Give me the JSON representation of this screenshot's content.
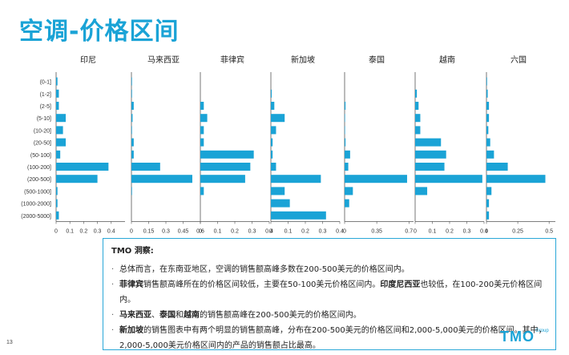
{
  "page": {
    "title": "空调-价格区间",
    "page_number": "13"
  },
  "colors": {
    "bar": "#1aa3d6",
    "title": "#1aa3d6",
    "axis": "#555555"
  },
  "chart_data": {
    "type": "bar",
    "orientation": "horizontal",
    "categories": [
      "(0-1]",
      "(1-2]",
      "(2-5]",
      "(5-10]",
      "(10-20]",
      "(20-50]",
      "(50-100]",
      "(100-200]",
      "(200-500]",
      "(500-1000]",
      "(1000-2000]",
      "(2000-5000]"
    ],
    "panels": [
      {
        "title": "印尼",
        "xlim": [
          0,
          0.5
        ],
        "ticks": [
          "0",
          "0.1",
          "0.2",
          "0.3",
          "0.4"
        ],
        "tick_values": [
          0,
          0.1,
          0.2,
          0.3,
          0.4
        ],
        "values": [
          0.01,
          0.02,
          0.02,
          0.07,
          0.05,
          0.07,
          0.03,
          0.38,
          0.3,
          0.01,
          0.01,
          0.02
        ]
      },
      {
        "title": "马来西亚",
        "xlim": [
          0,
          0.6
        ],
        "ticks": [
          "0",
          "0.15",
          "0.3",
          "0.45",
          "0.6"
        ],
        "tick_values": [
          0,
          0.15,
          0.3,
          0.45,
          0.6
        ],
        "values": [
          0.005,
          0.005,
          0.02,
          0.01,
          0.005,
          0.02,
          0.02,
          0.25,
          0.53,
          0.005,
          0.0,
          0.0
        ]
      },
      {
        "title": "菲律宾",
        "xlim": [
          0,
          0.4
        ],
        "ticks": [
          "0",
          "0.1",
          "0.2",
          "0.3",
          "0.4"
        ],
        "tick_values": [
          0,
          0.1,
          0.2,
          0.3,
          0.4
        ],
        "values": [
          0.0,
          0.0,
          0.02,
          0.04,
          0.02,
          0.02,
          0.31,
          0.29,
          0.26,
          0.02,
          0.0,
          0.0
        ]
      },
      {
        "title": "新加坡",
        "xlim": [
          0,
          0.4
        ],
        "ticks": [
          "0",
          "0.1",
          "0.2",
          "0.3",
          "0.4"
        ],
        "tick_values": [
          0,
          0.1,
          0.2,
          0.3,
          0.4
        ],
        "values": [
          0.0,
          0.005,
          0.02,
          0.08,
          0.03,
          0.01,
          0.01,
          0.03,
          0.29,
          0.08,
          0.11,
          0.32
        ]
      },
      {
        "title": "泰国",
        "xlim": [
          0,
          0.75
        ],
        "ticks": [
          "0",
          "0.35",
          "0.7"
        ],
        "tick_values": [
          0,
          0.35,
          0.7
        ],
        "values": [
          0.0,
          0.0,
          0.01,
          0.005,
          0.005,
          0.01,
          0.06,
          0.04,
          0.68,
          0.09,
          0.05,
          0.0
        ]
      },
      {
        "title": "越南",
        "xlim": [
          0,
          0.4
        ],
        "ticks": [
          "0",
          "0.1",
          "0.2",
          "0.3",
          "0.4"
        ],
        "tick_values": [
          0,
          0.1,
          0.2,
          0.3,
          0.4
        ],
        "values": [
          0.0,
          0.01,
          0.02,
          0.03,
          0.03,
          0.15,
          0.18,
          0.17,
          0.39,
          0.07,
          0.0,
          0.0
        ]
      },
      {
        "title": "六国",
        "xlim": [
          0,
          0.55
        ],
        "ticks": [
          "0",
          "0.25",
          "0.5"
        ],
        "tick_values": [
          0,
          0.25,
          0.5
        ],
        "values": [
          0.005,
          0.01,
          0.02,
          0.02,
          0.015,
          0.03,
          0.06,
          0.17,
          0.47,
          0.04,
          0.02,
          0.02
        ]
      }
    ]
  },
  "insight": {
    "heading": "TMO 洞察:",
    "bullets": [
      {
        "parts": [
          {
            "text": "总体而言，在东南亚地区，空调的销售额高峰多数在200-500美元的价格区间内。",
            "bold": false
          }
        ]
      },
      {
        "parts": [
          {
            "text": "菲律宾",
            "bold": true
          },
          {
            "text": "销售额高峰所在的价格区间较低，主要在50-100美元价格区间内。",
            "bold": false
          },
          {
            "text": "印度尼西亚",
            "bold": true
          },
          {
            "text": "也较低，在100-200美元价格区间内。",
            "bold": false
          }
        ]
      },
      {
        "parts": [
          {
            "text": "马来西亚",
            "bold": true
          },
          {
            "text": "、",
            "bold": false
          },
          {
            "text": "泰国",
            "bold": true
          },
          {
            "text": "和",
            "bold": false
          },
          {
            "text": "越南",
            "bold": true
          },
          {
            "text": "的销售额高峰在200-500美元的价格区间内。",
            "bold": false
          }
        ]
      },
      {
        "parts": [
          {
            "text": "新加坡",
            "bold": true
          },
          {
            "text": "的销售图表中有两个明显的销售额高峰，分布在200-500美元的价格区间和2,000-5,000美元的价格区间。其中，2,000-5,000美元价格区间内的产品的销售额占比最高。",
            "bold": false
          }
        ]
      }
    ]
  },
  "logo": {
    "text": "TMO",
    "subtext": "Group"
  }
}
